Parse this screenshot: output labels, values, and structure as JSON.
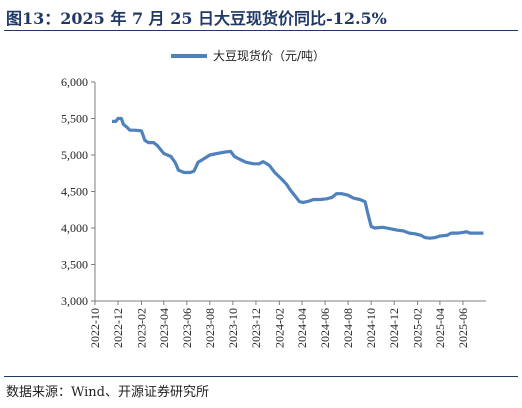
{
  "figure": {
    "title": "图13：2025 年 7 月 25 日大豆现货价同比-12.5%",
    "source": "数据来源：Wind、开源证券研究所"
  },
  "colors": {
    "series": "#4f81bd",
    "title": "#1f3864",
    "axis": "#7f7f7f"
  },
  "chart_data": {
    "type": "line",
    "title": "",
    "xlabel": "",
    "ylabel": "",
    "ylim": [
      3000,
      6000
    ],
    "yticks": [
      "3,000",
      "3,500",
      "4,000",
      "4,500",
      "5,000",
      "5,500",
      "6,000"
    ],
    "ytick_values": [
      3000,
      3500,
      4000,
      4500,
      5000,
      5500,
      6000
    ],
    "xlim": [
      "2022-10",
      "2025-08"
    ],
    "xticks": [
      "2022-10",
      "2022-12",
      "2023-02",
      "2023-04",
      "2023-06",
      "2023-08",
      "2023-10",
      "2023-12",
      "2024-02",
      "2024-04",
      "2024-06",
      "2024-08",
      "2024-10",
      "2024-12",
      "2025-02",
      "2025-04",
      "2025-06"
    ],
    "grid": false,
    "legend": "top-center",
    "series": [
      {
        "name": "大豆现货价（元/吨）",
        "points": [
          [
            "2022-11-15",
            5460
          ],
          [
            "2022-11-25",
            5460
          ],
          [
            "2022-12-01",
            5500
          ],
          [
            "2022-12-10",
            5500
          ],
          [
            "2022-12-15",
            5420
          ],
          [
            "2022-12-25",
            5380
          ],
          [
            "2023-01-01",
            5340
          ],
          [
            "2023-01-15",
            5340
          ],
          [
            "2023-02-01",
            5330
          ],
          [
            "2023-02-10",
            5200
          ],
          [
            "2023-02-20",
            5170
          ],
          [
            "2023-03-05",
            5170
          ],
          [
            "2023-03-15",
            5130
          ],
          [
            "2023-04-01",
            5020
          ],
          [
            "2023-04-20",
            4980
          ],
          [
            "2023-05-01",
            4900
          ],
          [
            "2023-05-10",
            4790
          ],
          [
            "2023-05-25",
            4760
          ],
          [
            "2023-06-10",
            4760
          ],
          [
            "2023-06-20",
            4780
          ],
          [
            "2023-07-01",
            4900
          ],
          [
            "2023-07-20",
            4960
          ],
          [
            "2023-08-01",
            5000
          ],
          [
            "2023-08-20",
            5020
          ],
          [
            "2023-09-10",
            5040
          ],
          [
            "2023-09-25",
            5050
          ],
          [
            "2023-10-05",
            4980
          ],
          [
            "2023-10-20",
            4940
          ],
          [
            "2023-11-05",
            4900
          ],
          [
            "2023-11-25",
            4880
          ],
          [
            "2023-12-10",
            4880
          ],
          [
            "2023-12-20",
            4910
          ],
          [
            "2024-01-05",
            4860
          ],
          [
            "2024-01-20",
            4760
          ],
          [
            "2024-02-05",
            4680
          ],
          [
            "2024-02-20",
            4600
          ],
          [
            "2024-03-01",
            4520
          ],
          [
            "2024-03-15",
            4430
          ],
          [
            "2024-03-25",
            4360
          ],
          [
            "2024-04-05",
            4350
          ],
          [
            "2024-04-20",
            4370
          ],
          [
            "2024-05-01",
            4390
          ],
          [
            "2024-05-20",
            4390
          ],
          [
            "2024-06-05",
            4400
          ],
          [
            "2024-06-20",
            4420
          ],
          [
            "2024-07-01",
            4470
          ],
          [
            "2024-07-15",
            4470
          ],
          [
            "2024-08-01",
            4450
          ],
          [
            "2024-08-15",
            4410
          ],
          [
            "2024-09-01",
            4390
          ],
          [
            "2024-09-15",
            4360
          ],
          [
            "2024-09-22",
            4200
          ],
          [
            "2024-10-01",
            4020
          ],
          [
            "2024-10-10",
            4000
          ],
          [
            "2024-11-01",
            4010
          ],
          [
            "2024-11-20",
            3990
          ],
          [
            "2024-12-10",
            3970
          ],
          [
            "2024-12-25",
            3960
          ],
          [
            "2025-01-10",
            3930
          ],
          [
            "2025-01-25",
            3920
          ],
          [
            "2025-02-10",
            3900
          ],
          [
            "2025-02-20",
            3870
          ],
          [
            "2025-03-05",
            3860
          ],
          [
            "2025-03-20",
            3870
          ],
          [
            "2025-04-01",
            3890
          ],
          [
            "2025-04-20",
            3900
          ],
          [
            "2025-05-01",
            3930
          ],
          [
            "2025-05-20",
            3930
          ],
          [
            "2025-06-01",
            3940
          ],
          [
            "2025-06-10",
            3950
          ],
          [
            "2025-06-20",
            3930
          ],
          [
            "2025-07-10",
            3930
          ],
          [
            "2025-07-25",
            3930
          ]
        ]
      }
    ]
  }
}
